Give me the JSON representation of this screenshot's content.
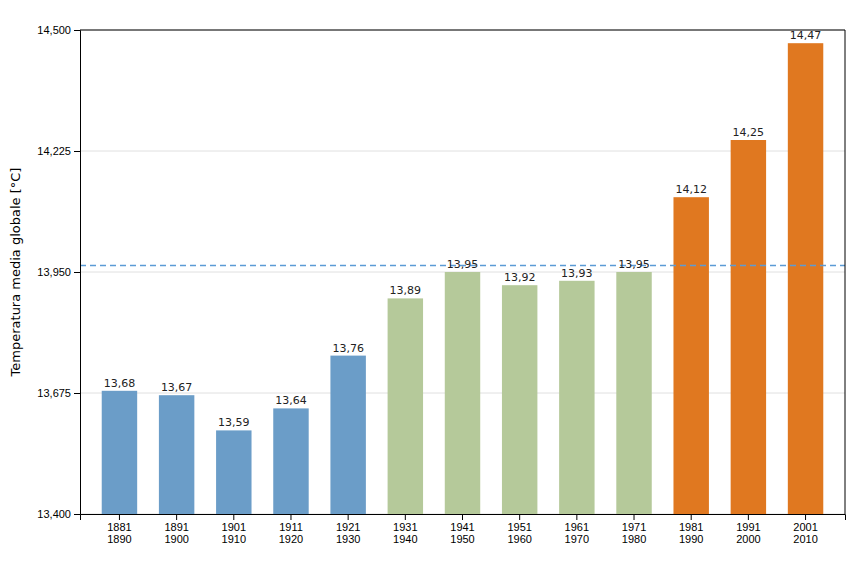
{
  "chart_data": {
    "type": "bar",
    "categories": [
      "1881\n1890",
      "1891\n1900",
      "1901\n1910",
      "1911\n1920",
      "1921\n1930",
      "1931\n1940",
      "1941\n1950",
      "1951\n1960",
      "1961\n1970",
      "1971\n1980",
      "1981\n1990",
      "1991\n2000",
      "2001\n2010"
    ],
    "values": [
      13.68,
      13.67,
      13.59,
      13.64,
      13.76,
      13.89,
      13.95,
      13.92,
      13.93,
      13.95,
      14.12,
      14.25,
      14.47
    ],
    "value_labels": [
      "13,68",
      "13,67",
      "13,59",
      "13,64",
      "13,76",
      "13,89",
      "13,95",
      "13,92",
      "13,93",
      "13,95",
      "14,12",
      "14,25",
      "14,47"
    ],
    "colors": [
      "#6b9dc8",
      "#6b9dc8",
      "#6b9dc8",
      "#6b9dc8",
      "#6b9dc8",
      "#b5c99a",
      "#b5c99a",
      "#b5c99a",
      "#b5c99a",
      "#b5c99a",
      "#e07820",
      "#e07820",
      "#e07820"
    ],
    "data_labels": true,
    "hlines": [
      {
        "value": 13.965,
        "color": "#5b9bd5",
        "line_style": "dashed"
      }
    ],
    "ylabel": "Temperatura media globale [°C]",
    "ylim": [
      13.4,
      14.5
    ],
    "yticks": [
      {
        "value": 13.4,
        "label": "13,400"
      },
      {
        "value": 13.675,
        "label": "13,675"
      },
      {
        "value": 13.95,
        "label": "13,950"
      },
      {
        "value": 14.225,
        "label": "14,225"
      },
      {
        "value": 14.5,
        "label": "14,500"
      }
    ],
    "grid": true
  }
}
